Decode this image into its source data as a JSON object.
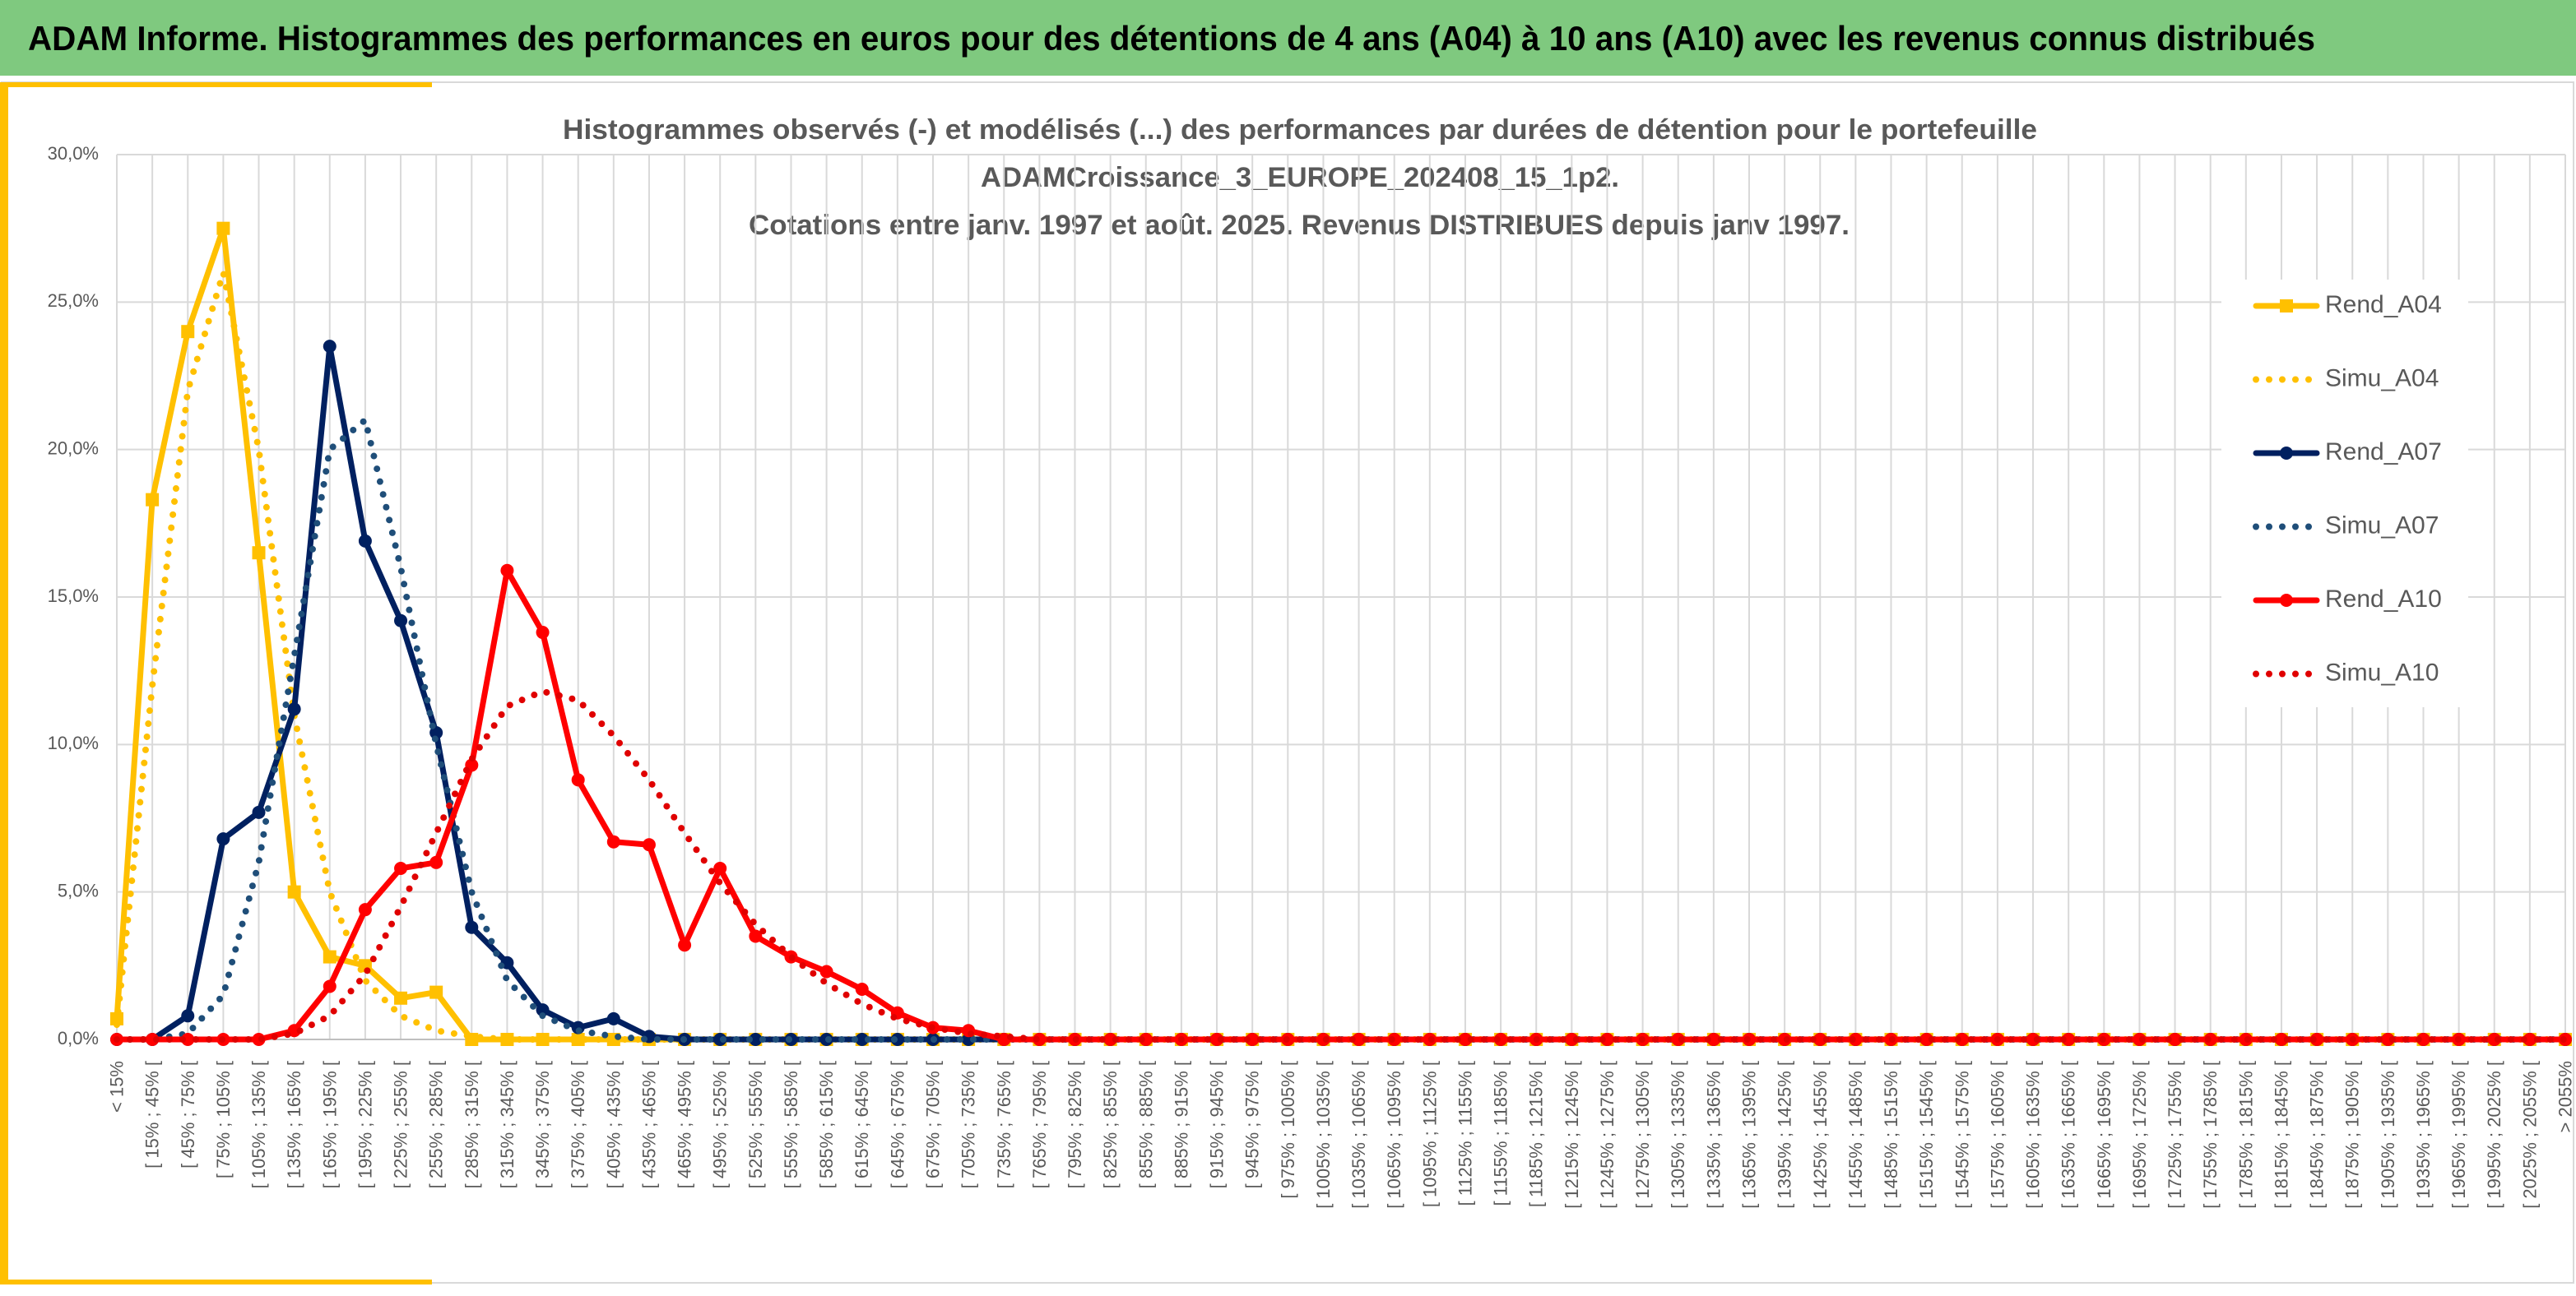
{
  "header": "ADAM Informe. Histogrammes des performances en euros pour des détentions de 4 ans (A04) à 10 ans (A10) avec les revenus connus distribués",
  "chart_data": {
    "type": "line",
    "title": [
      "Histogrammes observés (-) et modélisés (...) des performances par durées de détention pour le portefeuille",
      "ADAMCroissance_3_EUROPE_202408_15_1p2.",
      "Cotations entre janv. 1997 et août. 2025. Revenus DISTRIBUES depuis janv 1997."
    ],
    "categories": [
      "< 15%",
      "[ 15% ; 45% [",
      "[ 45% ; 75% [",
      "[ 75% ; 105% [",
      "[ 105% ; 135% [",
      "[ 135% ; 165% [",
      "[ 165% ; 195% [",
      "[ 195% ; 225% [",
      "[ 225% ; 255% [",
      "[ 255% ; 285% [",
      "[ 285% ; 315% [",
      "[ 315% ; 345% [",
      "[ 345% ; 375% [",
      "[ 375% ; 405% [",
      "[ 405% ; 435% [",
      "[ 435% ; 465% [",
      "[ 465% ; 495% [",
      "[ 495% ; 525% [",
      "[ 525% ; 555% [",
      "[ 555% ; 585% [",
      "[ 585% ; 615% [",
      "[ 615% ; 645% [",
      "[ 645% ; 675% [",
      "[ 675% ; 705% [",
      "[ 705% ; 735% [",
      "[ 735% ; 765% [",
      "[ 765% ; 795% [",
      "[ 795% ; 825% [",
      "[ 825% ; 855% [",
      "[ 855% ; 885% [",
      "[ 885% ; 915% [",
      "[ 915% ; 945% [",
      "[ 945% ; 975% [",
      "[ 975% ; 1005% [",
      "[ 1005% ; 1035% [",
      "[ 1035% ; 1065% [",
      "[ 1065% ; 1095% [",
      "[ 1095% ; 1125% [",
      "[ 1125% ; 1155% [",
      "[ 1155% ; 1185% [",
      "[ 1185% ; 1215% [",
      "[ 1215% ; 1245% [",
      "[ 1245% ; 1275% [",
      "[ 1275% ; 1305% [",
      "[ 1305% ; 1335% [",
      "[ 1335% ; 1365% [",
      "[ 1365% ; 1395% [",
      "[ 1395% ; 1425% [",
      "[ 1425% ; 1455% [",
      "[ 1455% ; 1485% [",
      "[ 1485% ; 1515% [",
      "[ 1515% ; 1545% [",
      "[ 1545% ; 1575% [",
      "[ 1575% ; 1605% [",
      "[ 1605% ; 1635% [",
      "[ 1635% ; 1665% [",
      "[ 1665% ; 1695% [",
      "[ 1695% ; 1725% [",
      "[ 1725% ; 1755% [",
      "[ 1755% ; 1785% [",
      "[ 1785% ; 1815% [",
      "[ 1815% ; 1845% [",
      "[ 1845% ; 1875% [",
      "[ 1875% ; 1905% [",
      "[ 1905% ; 1935% [",
      "[ 1935% ; 1965% [",
      "[ 1965% ; 1995% [",
      "[ 1995% ; 2025% [",
      "[ 2025% ; 2055% [",
      "> 2055%"
    ],
    "series": [
      {
        "name": "Rend_A04",
        "color": "#ffc000",
        "style": "solid",
        "marker": "square",
        "values": [
          0.7,
          18.3,
          24.0,
          27.5,
          16.5,
          5.0,
          2.8,
          2.5,
          1.4,
          1.6,
          0,
          0,
          0,
          0,
          0,
          0,
          0,
          0,
          0,
          0,
          0,
          0,
          0,
          0,
          0,
          0,
          0,
          0,
          0,
          0,
          0,
          0,
          0,
          0,
          0,
          0,
          0,
          0,
          0,
          0,
          0,
          0,
          0,
          0,
          0,
          0,
          0,
          0,
          0,
          0,
          0,
          0,
          0,
          0,
          0,
          0,
          0,
          0,
          0,
          0,
          0,
          0,
          0,
          0,
          0,
          0,
          0,
          0,
          0,
          0
        ]
      },
      {
        "name": "Simu_A04",
        "color": "#ffc000",
        "style": "dotted",
        "values": [
          0.5,
          12,
          22,
          26,
          20,
          11,
          5,
          2,
          0.8,
          0.3,
          0.1,
          0,
          0,
          0,
          0,
          0,
          0,
          0,
          0,
          0,
          0,
          0,
          0,
          0,
          0,
          0,
          0,
          0,
          0,
          0,
          0,
          0,
          0,
          0,
          0,
          0,
          0,
          0,
          0,
          0,
          0,
          0,
          0,
          0,
          0,
          0,
          0,
          0,
          0,
          0,
          0,
          0,
          0,
          0,
          0,
          0,
          0,
          0,
          0,
          0,
          0,
          0,
          0,
          0,
          0,
          0,
          0,
          0,
          0,
          0
        ]
      },
      {
        "name": "Rend_A07",
        "color": "#002060",
        "style": "solid",
        "marker": "circle",
        "values": [
          0,
          0,
          0.8,
          6.8,
          7.7,
          11.2,
          23.5,
          16.9,
          14.2,
          10.4,
          3.8,
          2.6,
          1.0,
          0.4,
          0.7,
          0.1,
          0,
          0,
          0,
          0,
          0,
          0,
          0,
          0,
          0,
          0,
          0,
          0,
          0,
          0,
          0,
          0,
          0,
          0,
          0,
          0,
          0,
          0,
          0,
          0,
          0,
          0,
          0,
          0,
          0,
          0,
          0,
          0,
          0,
          0,
          0,
          0,
          0,
          0,
          0,
          0,
          0,
          0,
          0,
          0,
          0,
          0,
          0,
          0,
          0,
          0,
          0,
          0,
          0,
          0
        ]
      },
      {
        "name": "Simu_A07",
        "color": "#1f4e79",
        "style": "dotted",
        "values": [
          0,
          0,
          0.2,
          1.5,
          6,
          13,
          20,
          21,
          16,
          10,
          5,
          2,
          0.8,
          0.3,
          0.1,
          0,
          0,
          0,
          0,
          0,
          0,
          0,
          0,
          0,
          0,
          0,
          0,
          0,
          0,
          0,
          0,
          0,
          0,
          0,
          0,
          0,
          0,
          0,
          0,
          0,
          0,
          0,
          0,
          0,
          0,
          0,
          0,
          0,
          0,
          0,
          0,
          0,
          0,
          0,
          0,
          0,
          0,
          0,
          0,
          0,
          0,
          0,
          0,
          0,
          0,
          0,
          0,
          0,
          0,
          0
        ]
      },
      {
        "name": "Rend_A10",
        "color": "#ff0000",
        "style": "solid",
        "marker": "circle",
        "values": [
          0,
          0,
          0,
          0,
          0,
          0.3,
          1.8,
          4.4,
          5.8,
          6.0,
          9.3,
          15.9,
          13.8,
          8.8,
          6.7,
          6.6,
          3.2,
          5.8,
          3.5,
          2.8,
          2.3,
          1.7,
          0.9,
          0.4,
          0.3,
          0,
          0,
          0,
          0,
          0,
          0,
          0,
          0,
          0,
          0,
          0,
          0,
          0,
          0,
          0,
          0,
          0,
          0,
          0,
          0,
          0,
          0,
          0,
          0,
          0,
          0,
          0,
          0,
          0,
          0,
          0,
          0,
          0,
          0,
          0,
          0,
          0,
          0,
          0,
          0,
          0,
          0,
          0,
          0,
          0
        ]
      },
      {
        "name": "Simu_A10",
        "color": "#e00000",
        "style": "dotted",
        "values": [
          0,
          0,
          0,
          0,
          0,
          0.2,
          0.8,
          2.2,
          4.5,
          7,
          9.5,
          11.3,
          11.8,
          11.5,
          10.3,
          8.8,
          7,
          5.3,
          3.9,
          2.8,
          1.9,
          1.2,
          0.7,
          0.4,
          0.2,
          0.1,
          0,
          0,
          0,
          0,
          0,
          0,
          0,
          0,
          0,
          0,
          0,
          0,
          0,
          0,
          0,
          0,
          0,
          0,
          0,
          0,
          0,
          0,
          0,
          0,
          0,
          0,
          0,
          0,
          0,
          0,
          0,
          0,
          0,
          0,
          0,
          0,
          0,
          0,
          0,
          0,
          0,
          0,
          0,
          0
        ]
      }
    ],
    "ylim": [
      0,
      30
    ],
    "yticks": [
      {
        "value": 0,
        "label": "0,0%"
      },
      {
        "value": 5,
        "label": "5,0%"
      },
      {
        "value": 10,
        "label": "10,0%"
      },
      {
        "value": 15,
        "label": "15,0%"
      },
      {
        "value": 20,
        "label": "20,0%"
      },
      {
        "value": 25,
        "label": "25,0%"
      },
      {
        "value": 30,
        "label": "30,0%"
      }
    ],
    "grid": true,
    "legend": "right"
  }
}
